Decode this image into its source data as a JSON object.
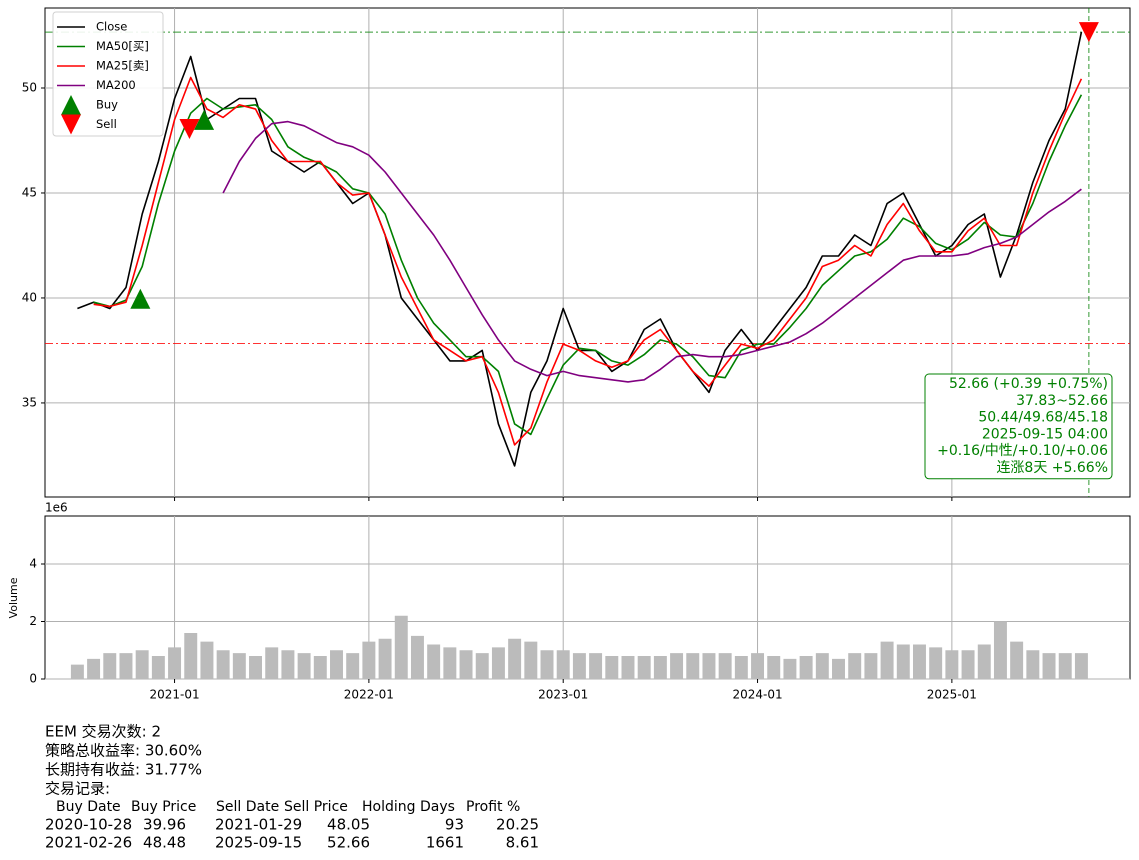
{
  "chart_data": [
    {
      "type": "line",
      "x": [
        "2020-07",
        "2020-08",
        "2020-09",
        "2020-10",
        "2020-11",
        "2020-12",
        "2021-01",
        "2021-02",
        "2021-03",
        "2021-04",
        "2021-05",
        "2021-06",
        "2021-07",
        "2021-08",
        "2021-09",
        "2021-10",
        "2021-11",
        "2021-12",
        "2022-01",
        "2022-02",
        "2022-03",
        "2022-04",
        "2022-05",
        "2022-06",
        "2022-07",
        "2022-08",
        "2022-09",
        "2022-10",
        "2022-11",
        "2022-12",
        "2023-01",
        "2023-02",
        "2023-03",
        "2023-04",
        "2023-05",
        "2023-06",
        "2023-07",
        "2023-08",
        "2023-09",
        "2023-10",
        "2023-11",
        "2023-12",
        "2024-01",
        "2024-02",
        "2024-03",
        "2024-04",
        "2024-05",
        "2024-06",
        "2024-07",
        "2024-08",
        "2024-09",
        "2024-10",
        "2024-11",
        "2024-12",
        "2025-01",
        "2025-02",
        "2025-03",
        "2025-04",
        "2025-05",
        "2025-06",
        "2025-07",
        "2025-08",
        "2025-09"
      ],
      "series": [
        {
          "name": "Close",
          "color": "#000000",
          "values": [
            39.5,
            39.8,
            39.5,
            40.5,
            44,
            46.5,
            49.5,
            51.5,
            48.5,
            49,
            49.5,
            49.5,
            47,
            46.5,
            46,
            46.5,
            45.5,
            44.5,
            45,
            43,
            40,
            39,
            38,
            37,
            37,
            37.5,
            34,
            32,
            35.5,
            37,
            39.5,
            37.5,
            37.5,
            36.5,
            37,
            38.5,
            39,
            37.5,
            36.5,
            35.5,
            37.5,
            38.5,
            37.5,
            38.5,
            39.5,
            40.5,
            42,
            42,
            43,
            42.5,
            44.5,
            45,
            43.5,
            42,
            42.5,
            43.5,
            44,
            41,
            43,
            45.5,
            47.5,
            49,
            52.66
          ]
        },
        {
          "name": "MA50[买]",
          "color": "#008000",
          "values": [
            null,
            39.8,
            39.6,
            39.9,
            41.5,
            44.5,
            47,
            48.8,
            49.5,
            49,
            49.1,
            49.2,
            48.5,
            47.2,
            46.7,
            46.4,
            46,
            45.2,
            45,
            44,
            41.8,
            40,
            38.8,
            38,
            37.2,
            37.2,
            36.5,
            34,
            33.5,
            35.2,
            36.8,
            37.6,
            37.5,
            37,
            36.8,
            37.3,
            38,
            37.8,
            37.2,
            36.3,
            36.2,
            37.5,
            37.8,
            37.8,
            38.6,
            39.5,
            40.6,
            41.3,
            42,
            42.2,
            42.8,
            43.8,
            43.4,
            42.6,
            42.3,
            42.8,
            43.6,
            43,
            42.9,
            44.5,
            46.5,
            48.2,
            49.68
          ]
        },
        {
          "name": "MA25[卖]",
          "color": "#ff0000",
          "values": [
            null,
            39.7,
            39.6,
            39.8,
            42.5,
            45.5,
            48.5,
            50.5,
            49,
            48.6,
            49.2,
            49,
            47.5,
            46.5,
            46.5,
            46.5,
            45.5,
            44.9,
            45,
            43,
            41,
            39.5,
            38,
            37.5,
            37,
            37.2,
            35.5,
            33,
            33.8,
            36,
            37.8,
            37.5,
            37,
            36.7,
            37,
            38,
            38.5,
            37.5,
            36.5,
            35.8,
            36.8,
            37.8,
            37.6,
            38,
            39,
            40,
            41.5,
            41.8,
            42.5,
            42,
            43.5,
            44.5,
            43.2,
            42.2,
            42.2,
            43.2,
            43.8,
            42.5,
            42.5,
            45,
            47,
            48.8,
            50.44
          ]
        },
        {
          "name": "MA200",
          "color": "#800080",
          "values": [
            null,
            null,
            null,
            null,
            null,
            null,
            null,
            null,
            null,
            45,
            46.5,
            47.6,
            48.3,
            48.4,
            48.2,
            47.8,
            47.4,
            47.2,
            46.8,
            46,
            45,
            44,
            43,
            41.8,
            40.5,
            39.2,
            38,
            37,
            36.6,
            36.3,
            36.5,
            36.3,
            36.2,
            36.1,
            36,
            36.1,
            36.6,
            37.2,
            37.3,
            37.2,
            37.2,
            37.3,
            37.5,
            37.7,
            37.9,
            38.3,
            38.8,
            39.4,
            40,
            40.6,
            41.2,
            41.8,
            42,
            42,
            42,
            42.1,
            42.4,
            42.6,
            42.9,
            43.5,
            44.1,
            44.6,
            45.18
          ]
        }
      ],
      "markers": [
        {
          "name": "Buy",
          "color": "#008000",
          "symbol": "triangle-up",
          "x": [
            "2020-10-28",
            "2021-02-26"
          ],
          "values": [
            39.96,
            48.48
          ]
        },
        {
          "name": "Sell",
          "color": "#ff0000",
          "symbol": "triangle-down",
          "x": [
            "2021-01-29",
            "2025-09-15"
          ],
          "values": [
            48.05,
            52.66
          ]
        }
      ],
      "hlines": [
        {
          "value": 52.66,
          "color": "#008000"
        },
        {
          "value": 37.83,
          "color": "#ff0000"
        }
      ],
      "vline": {
        "x": "2025-09-15",
        "color": "#008000"
      },
      "annotation": {
        "color": "#008000",
        "lines": [
          "52.66 (+0.39 +0.75%)",
          "37.83~52.66",
          "50.44/49.68/45.18",
          "2025-09-15 04:00",
          "+0.16/中性/+0.10/+0.06",
          "连涨8天 +5.66%"
        ]
      },
      "xlim": [
        "2020-05",
        "2025-12"
      ],
      "xticks": [
        "2021-01",
        "2022-01",
        "2023-01",
        "2024-01",
        "2025-01"
      ],
      "ylim": [
        30.52,
        53.81
      ],
      "yticks": [
        35,
        40,
        45,
        50
      ],
      "grid": true,
      "legend": "upper left"
    },
    {
      "type": "bar",
      "y_label": "Volume",
      "y_offset_label": "1e6",
      "color": "#bbbbbb",
      "x": [
        "2020-07",
        "2020-08",
        "2020-09",
        "2020-10",
        "2020-11",
        "2020-12",
        "2021-01",
        "2021-02",
        "2021-03",
        "2021-04",
        "2021-05",
        "2021-06",
        "2021-07",
        "2021-08",
        "2021-09",
        "2021-10",
        "2021-11",
        "2021-12",
        "2022-01",
        "2022-02",
        "2022-03",
        "2022-04",
        "2022-05",
        "2022-06",
        "2022-07",
        "2022-08",
        "2022-09",
        "2022-10",
        "2022-11",
        "2022-12",
        "2023-01",
        "2023-02",
        "2023-03",
        "2023-04",
        "2023-05",
        "2023-06",
        "2023-07",
        "2023-08",
        "2023-09",
        "2023-10",
        "2023-11",
        "2023-12",
        "2024-01",
        "2024-02",
        "2024-03",
        "2024-04",
        "2024-05",
        "2024-06",
        "2024-07",
        "2024-08",
        "2024-09",
        "2024-10",
        "2024-11",
        "2024-12",
        "2025-01",
        "2025-02",
        "2025-03",
        "2025-04",
        "2025-05",
        "2025-06",
        "2025-07",
        "2025-08",
        "2025-09"
      ],
      "values": [
        0.5,
        0.7,
        0.9,
        0.9,
        1.0,
        0.8,
        1.1,
        1.6,
        1.3,
        1.0,
        0.9,
        0.8,
        1.1,
        1.0,
        0.9,
        0.8,
        1.0,
        0.9,
        1.3,
        1.4,
        2.2,
        1.5,
        1.2,
        1.1,
        1.0,
        0.9,
        1.1,
        1.4,
        1.3,
        1.0,
        1.0,
        0.9,
        0.9,
        0.8,
        0.8,
        0.8,
        0.8,
        0.9,
        0.9,
        0.9,
        0.9,
        0.8,
        0.9,
        0.8,
        0.7,
        0.8,
        0.9,
        0.7,
        0.9,
        0.9,
        1.3,
        1.2,
        1.2,
        1.1,
        1.0,
        1.0,
        1.2,
        2.0,
        1.3,
        1.0,
        0.9,
        0.9,
        0.9
      ],
      "xlim": [
        "2020-05",
        "2025-12"
      ],
      "xticks": [
        "2021-01",
        "2022-01",
        "2023-01",
        "2024-01",
        "2025-01"
      ],
      "ylim": [
        0,
        5.67
      ],
      "yticks": [
        0,
        2,
        4
      ],
      "grid": true
    }
  ],
  "summary": {
    "lines": [
      "EEM 交易次数: 2",
      "策略总收益率: 30.60%",
      "长期持有收益: 31.77%",
      "交易记录:"
    ],
    "table": {
      "header": [
        "Buy Date",
        "Buy Price",
        "Sell Date",
        "Sell Price",
        "Holding Days",
        "Profit %"
      ],
      "rows": [
        [
          "2020-10-28",
          39.96,
          "2021-01-29",
          48.05,
          93,
          20.25
        ],
        [
          "2021-02-26",
          48.48,
          "2025-09-15",
          52.66,
          1661,
          8.61
        ]
      ]
    }
  }
}
